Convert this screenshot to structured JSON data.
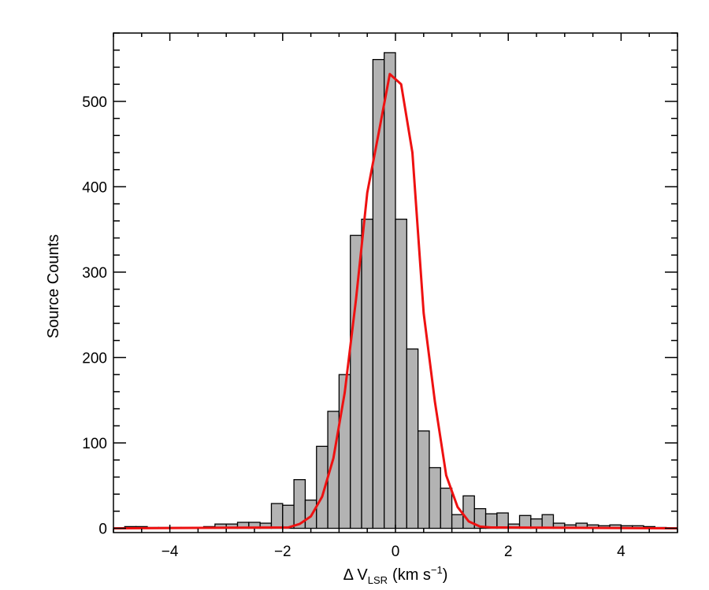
{
  "chart_data": {
    "type": "bar",
    "subtype": "histogram",
    "xlabel": "Δ V",
    "xlabel_subscript": "LSR",
    "xlabel_units_prefix": "(km s",
    "xlabel_units_sup": "−1",
    "xlabel_units_suffix": ")",
    "ylabel": "Source Counts",
    "xlim": [
      -5,
      5
    ],
    "ylim": [
      -5,
      580
    ],
    "x_ticks": [
      -4,
      -2,
      0,
      2,
      4
    ],
    "x_tick_labels": [
      "−4",
      "−2",
      "0",
      "2",
      "4"
    ],
    "y_ticks": [
      0,
      100,
      200,
      300,
      400,
      500
    ],
    "y_tick_labels": [
      "0",
      "100",
      "200",
      "300",
      "400",
      "500"
    ],
    "x_minor_step": 0.5,
    "y_minor_step": 20,
    "bin_width": 0.2,
    "bin_start": -4.8,
    "counts": [
      2,
      2,
      1,
      1,
      1,
      1,
      1,
      2,
      5,
      5,
      7,
      7,
      6,
      29,
      27,
      57,
      33,
      96,
      137,
      180,
      343,
      362,
      549,
      557,
      362,
      210,
      114,
      71,
      47,
      16,
      38,
      23,
      17,
      18,
      5,
      15,
      11,
      16,
      6,
      4,
      6,
      4,
      3,
      4,
      3,
      3,
      2,
      1
    ],
    "bar_fill": "#b3b3b3",
    "bar_edge": "#000000",
    "fit_curve": {
      "color": "#ee1111",
      "x": [
        -5.0,
        -1.9,
        -1.7,
        -1.5,
        -1.3,
        -1.1,
        -0.9,
        -0.7,
        -0.5,
        -0.3,
        -0.1,
        0.1,
        0.3,
        0.5,
        0.7,
        0.9,
        1.1,
        1.3,
        1.5,
        1.7,
        5.0
      ],
      "y": [
        0,
        1,
        5,
        14,
        37,
        82,
        159,
        268,
        393,
        462,
        532,
        520,
        440,
        252,
        148,
        62,
        25,
        8,
        2,
        1,
        0
      ]
    },
    "grid": false,
    "legend": "none"
  }
}
